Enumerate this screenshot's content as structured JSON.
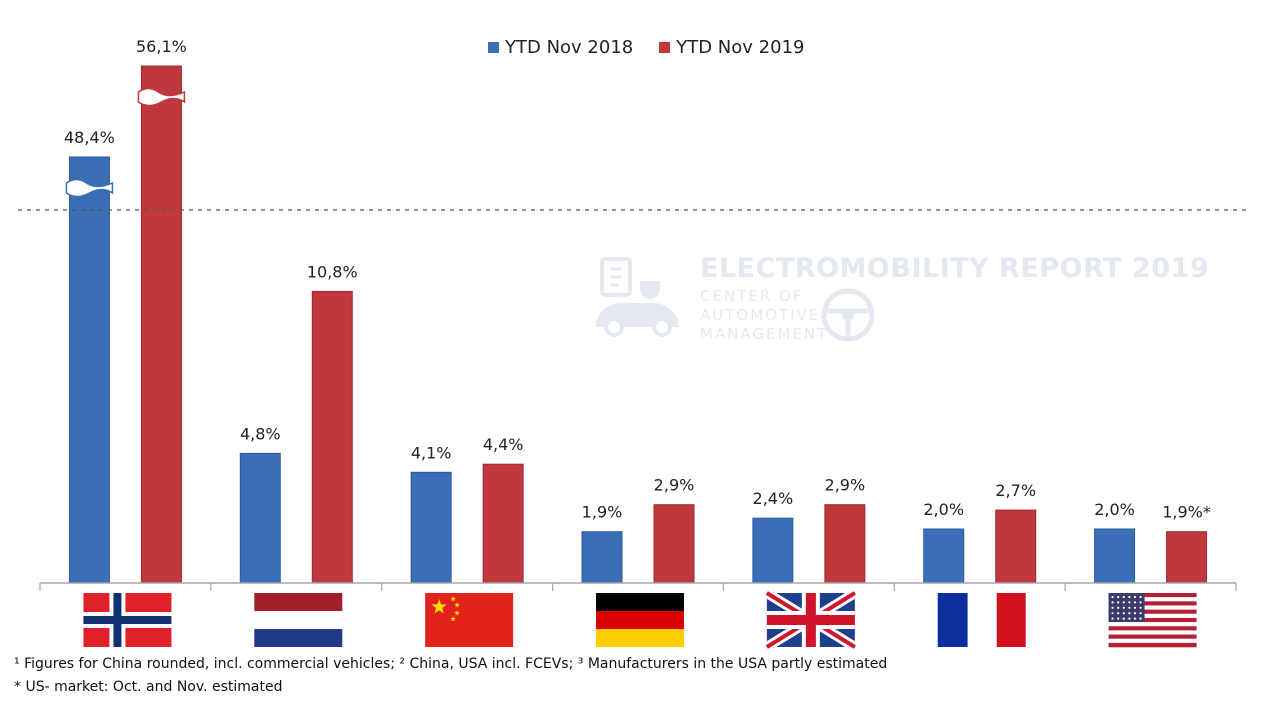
{
  "legend": {
    "series_a_label": "YTD Nov 2018",
    "series_b_label": "YTD Nov 2019"
  },
  "colors": {
    "series_a": "#3a6fb8",
    "series_b": "#c0373c",
    "axis": "#a6a6a6",
    "watermark": "#e4e9f1"
  },
  "watermark": {
    "title": "ELECTROMOBILITY REPORT 2019",
    "line1": "CENTER OF",
    "line2": "AUTOMOTIVE",
    "line3": "MANAGEMENT"
  },
  "footnotes": {
    "note1": "¹ Figures for China rounded, incl. commercial vehicles; ² China, USA incl. FCEVs; ³ Manufacturers in the USA partly estimated",
    "note2": "* US- market: Oct. and Nov. estimated"
  },
  "chart_data": {
    "type": "bar",
    "categories": [
      "Norway",
      "Netherlands",
      "China",
      "Germany",
      "United Kingdom",
      "France",
      "USA"
    ],
    "category_icons": [
      "flag-norway",
      "flag-netherlands",
      "flag-china",
      "flag-germany",
      "flag-uk",
      "flag-france",
      "flag-usa"
    ],
    "series": [
      {
        "name": "YTD Nov 2018",
        "values": [
          48.4,
          4.8,
          4.1,
          1.9,
          2.4,
          2.0,
          2.0
        ],
        "labels": [
          "48,4%",
          "4,8%",
          "4,1%",
          "1,9%",
          "2,4%",
          "2,0%",
          "2,0%"
        ]
      },
      {
        "name": "YTD Nov 2019",
        "values": [
          56.1,
          10.8,
          4.4,
          2.9,
          2.9,
          2.7,
          1.9
        ],
        "labels": [
          "56,1%",
          "10,8%",
          "4,4%",
          "2,9%",
          "2,9%",
          "2,7%",
          "1,9%*"
        ]
      }
    ],
    "axis_break": true,
    "grid": false,
    "legend_position": "top-center"
  }
}
